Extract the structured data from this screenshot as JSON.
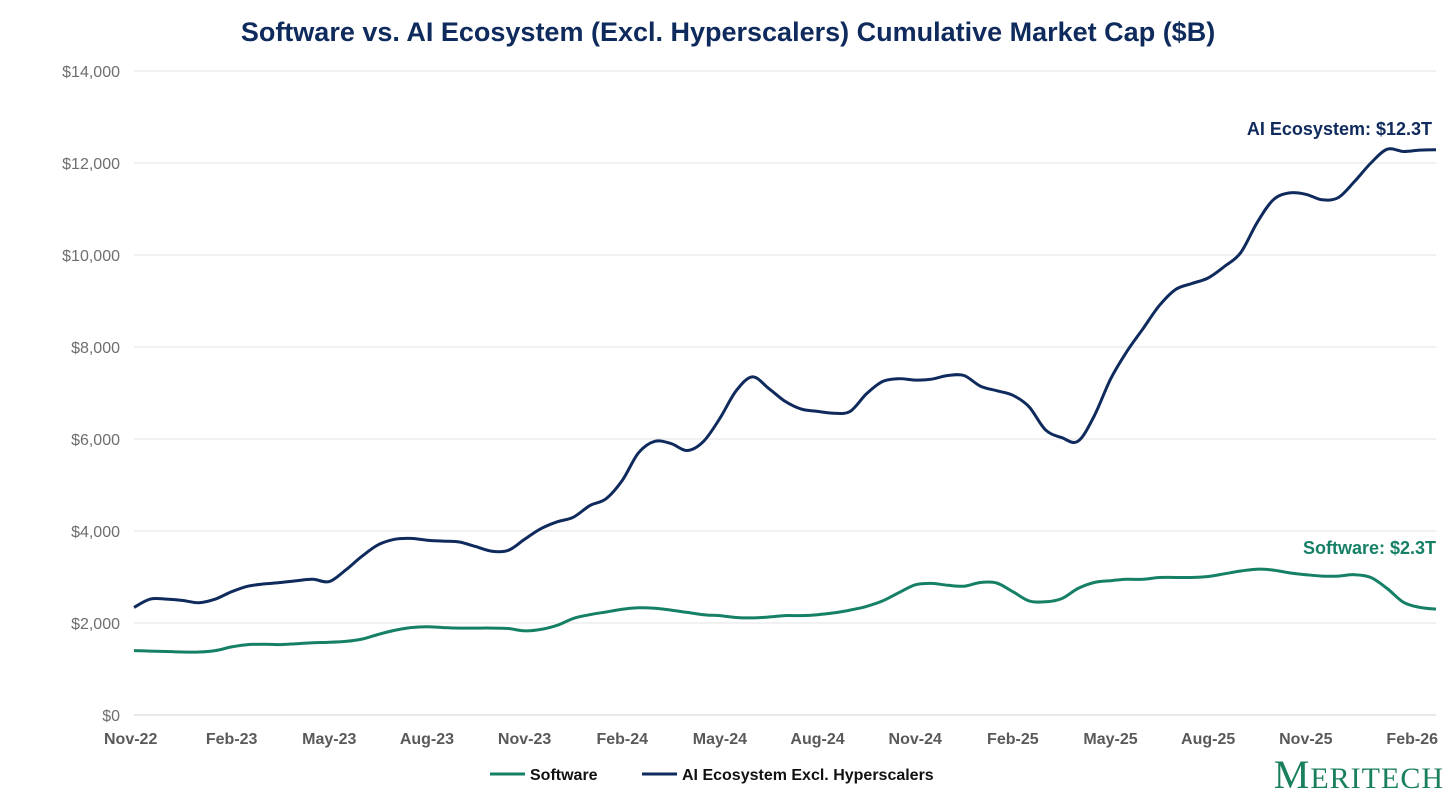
{
  "chart_data": {
    "type": "line",
    "title": "Software vs. AI Ecosystem (Excl. Hyperscalers) Cumulative Market Cap ($B)",
    "xlabel": "",
    "ylabel": "",
    "ylim": [
      0,
      14000
    ],
    "yticks": [
      0,
      2000,
      4000,
      6000,
      8000,
      10000,
      12000,
      14000
    ],
    "ytick_labels": [
      "$0",
      "$2,000",
      "$4,000",
      "$6,000",
      "$8,000",
      "$10,000",
      "$12,000",
      "$14,000"
    ],
    "x_tick_labels": [
      "Nov-22",
      "Feb-23",
      "May-23",
      "Aug-23",
      "Nov-23",
      "Feb-24",
      "May-24",
      "Aug-24",
      "Nov-24",
      "Feb-25",
      "May-25",
      "Aug-25",
      "Nov-25",
      "Feb-26"
    ],
    "x_range_months": [
      0,
      40
    ],
    "grid": true,
    "legend_position": "bottom",
    "series": [
      {
        "name": "Software",
        "color": "#168066",
        "x": [
          0,
          0.5,
          1,
          1.5,
          2,
          2.5,
          3,
          3.5,
          4,
          4.5,
          5,
          5.5,
          6,
          6.5,
          7,
          7.5,
          8,
          8.5,
          9,
          9.5,
          10,
          10.5,
          11,
          11.5,
          12,
          12.5,
          13,
          13.5,
          14,
          14.5,
          15,
          15.5,
          16,
          16.5,
          17,
          17.5,
          18,
          18.5,
          19,
          19.5,
          20,
          20.5,
          21,
          21.5,
          22,
          22.5,
          23,
          23.5,
          24,
          24.5,
          25,
          25.5,
          26,
          26.5,
          27,
          27.5,
          28,
          28.5,
          29,
          29.5,
          30,
          30.5,
          31,
          31.5,
          32,
          32.5,
          33,
          33.5,
          34,
          34.5,
          35,
          35.5,
          36,
          36.5,
          37,
          37.5,
          38,
          38.5,
          39,
          39.5,
          40
        ],
        "values": [
          1400,
          1390,
          1380,
          1370,
          1370,
          1400,
          1480,
          1530,
          1540,
          1530,
          1550,
          1570,
          1580,
          1600,
          1650,
          1750,
          1840,
          1900,
          1920,
          1900,
          1890,
          1890,
          1890,
          1880,
          1830,
          1860,
          1950,
          2100,
          2180,
          2240,
          2300,
          2330,
          2320,
          2280,
          2230,
          2180,
          2160,
          2120,
          2110,
          2130,
          2160,
          2160,
          2180,
          2220,
          2280,
          2360,
          2480,
          2660,
          2830,
          2860,
          2820,
          2800,
          2880,
          2870,
          2680,
          2480,
          2460,
          2530,
          2750,
          2880,
          2920,
          2950,
          2950,
          2990,
          2990,
          2990,
          3010,
          3070,
          3130,
          3170,
          3150,
          3090,
          3050,
          3020,
          3020,
          3050,
          2990,
          2750,
          2450,
          2340,
          2300
        ]
      },
      {
        "name": "AI Ecosystem Excl. Hyperscalers",
        "color": "#0f2a5c",
        "x": [
          0,
          0.5,
          1,
          1.5,
          2,
          2.5,
          3,
          3.5,
          4,
          4.5,
          5,
          5.5,
          6,
          6.5,
          7,
          7.5,
          8,
          8.5,
          9,
          9.5,
          10,
          10.5,
          11,
          11.5,
          12,
          12.5,
          13,
          13.5,
          14,
          14.5,
          15,
          15.5,
          16,
          16.5,
          17,
          17.5,
          18,
          18.5,
          19,
          19.5,
          20,
          20.5,
          21,
          21.5,
          22,
          22.5,
          23,
          23.5,
          24,
          24.5,
          25,
          25.5,
          26,
          26.5,
          27,
          27.5,
          28,
          28.5,
          29,
          29.5,
          30,
          30.5,
          31,
          31.5,
          32,
          32.5,
          33,
          33.5,
          34,
          34.5,
          35,
          35.5,
          36,
          36.5,
          37,
          37.5,
          38,
          38.5,
          39,
          39.5,
          40
        ],
        "values": [
          2340,
          2520,
          2520,
          2490,
          2440,
          2520,
          2680,
          2800,
          2850,
          2880,
          2920,
          2950,
          2900,
          3150,
          3450,
          3700,
          3820,
          3840,
          3800,
          3780,
          3760,
          3660,
          3560,
          3580,
          3820,
          4050,
          4200,
          4300,
          4550,
          4700,
          5100,
          5700,
          5950,
          5900,
          5750,
          5950,
          6450,
          7050,
          7350,
          7100,
          6820,
          6650,
          6600,
          6560,
          6600,
          6980,
          7250,
          7310,
          7280,
          7300,
          7380,
          7380,
          7150,
          7050,
          6950,
          6700,
          6200,
          6030,
          5950,
          6500,
          7300,
          7900,
          8400,
          8900,
          9250,
          9380,
          9500,
          9750,
          10050,
          10700,
          11200,
          11350,
          11320,
          11200,
          11250,
          11600,
          12000,
          12300,
          12250,
          12280,
          12290
        ]
      }
    ],
    "annotations": [
      {
        "text": "AI Ecosystem: $12.3T",
        "series": "AI Ecosystem Excl. Hyperscalers",
        "color": "#0f2a5c"
      },
      {
        "text": "Software: $2.3T",
        "series": "Software",
        "color": "#168066"
      }
    ]
  },
  "legend": {
    "software_label": "Software",
    "ai_label": "AI Ecosystem Excl. Hyperscalers"
  },
  "brand": {
    "logo_text": "Meritech",
    "logo_color": "#1a7f5f"
  }
}
